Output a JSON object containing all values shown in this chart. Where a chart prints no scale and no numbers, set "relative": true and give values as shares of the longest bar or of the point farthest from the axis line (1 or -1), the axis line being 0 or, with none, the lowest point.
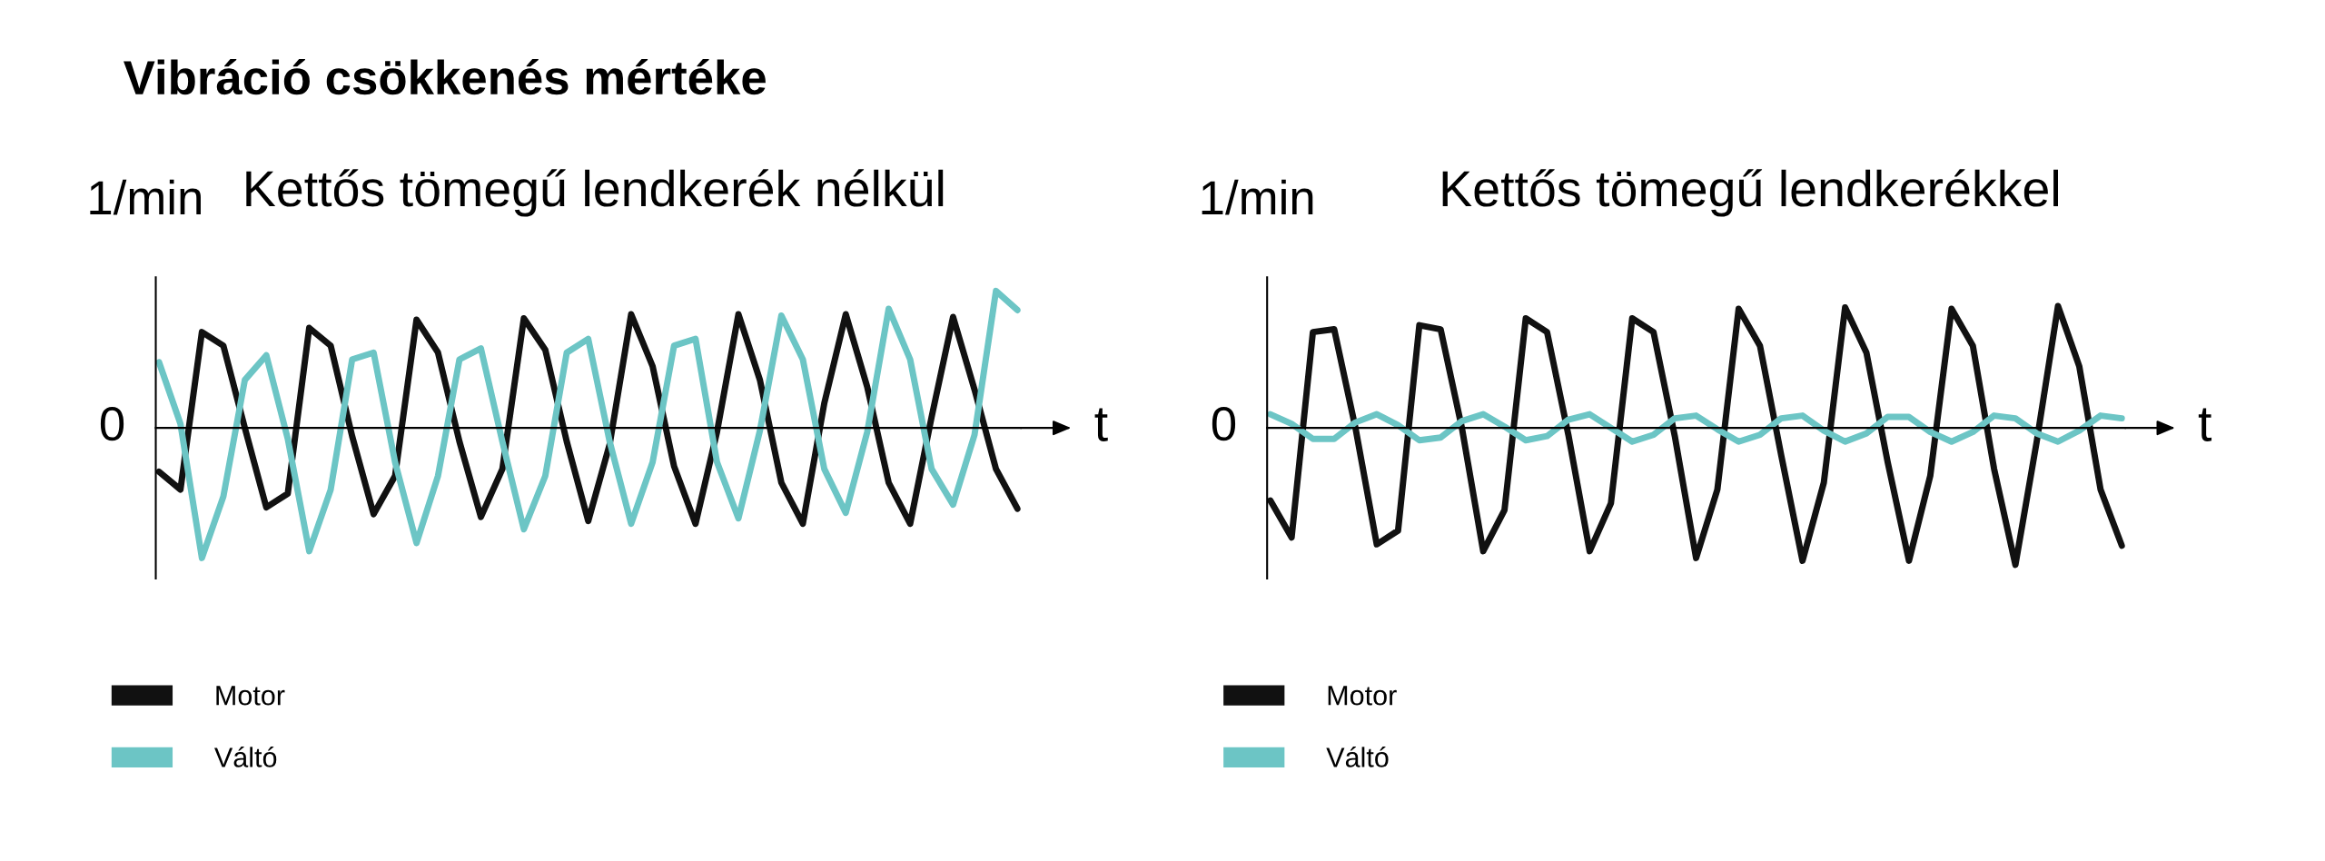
{
  "chart_data": [
    {
      "type": "line",
      "title": "Vibráció csökkenés mértéke",
      "subtitle": "Kettős tömegű lendkerék nélkül",
      "xlabel": "t",
      "ylabel": "1/min",
      "annotations": [
        "0"
      ],
      "relative": true,
      "legend": "bottom left",
      "categories": [
        null,
        null,
        null,
        null,
        null,
        null,
        null,
        null,
        null,
        null,
        null,
        null,
        null,
        null,
        null,
        null,
        null,
        null,
        null,
        null,
        null,
        null,
        null,
        null,
        null,
        null,
        null,
        null,
        null,
        null,
        null,
        null,
        null,
        null,
        null,
        null,
        null,
        null,
        null,
        null,
        null
      ],
      "series": [
        {
          "name": "Motor",
          "color": "#111111",
          "values": [
            -0.32,
            -0.45,
            0.7,
            0.6,
            0,
            -0.58,
            -0.48,
            0.73,
            0.6,
            -0.06,
            -0.63,
            -0.35,
            0.79,
            0.55,
            -0.1,
            -0.65,
            -0.3,
            0.8,
            0.57,
            -0.1,
            -0.68,
            -0.12,
            0.83,
            0.45,
            -0.28,
            -0.7,
            -0.03,
            0.83,
            0.35,
            -0.4,
            -0.7,
            0.18,
            0.83,
            0.3,
            -0.4,
            -0.7,
            0.08,
            0.81,
            0.28,
            -0.3,
            -0.59
          ]
        },
        {
          "name": "Váltó",
          "color": "#6cc5c5",
          "values": [
            0.48,
            0.03,
            -0.95,
            -0.5,
            0.35,
            0.53,
            -0.08,
            -0.9,
            -0.45,
            0.5,
            0.55,
            -0.25,
            -0.84,
            -0.35,
            0.5,
            0.58,
            -0.1,
            -0.74,
            -0.35,
            0.55,
            0.65,
            -0.1,
            -0.7,
            -0.25,
            0.6,
            0.65,
            -0.25,
            -0.66,
            -0.02,
            0.82,
            0.5,
            -0.3,
            -0.62,
            -0.03,
            0.87,
            0.5,
            -0.3,
            -0.56,
            -0.05,
            1,
            0.86
          ]
        }
      ]
    },
    {
      "type": "line",
      "subtitle": "Kettős tömegű lendkerékkel",
      "xlabel": "t",
      "ylabel": "1/min",
      "annotations": [
        "0"
      ],
      "relative": true,
      "legend": "bottom left",
      "categories": [
        null,
        null,
        null,
        null,
        null,
        null,
        null,
        null,
        null,
        null,
        null,
        null,
        null,
        null,
        null,
        null,
        null,
        null,
        null,
        null,
        null,
        null,
        null,
        null,
        null,
        null,
        null,
        null,
        null,
        null,
        null,
        null,
        null,
        null,
        null,
        null,
        null,
        null,
        null,
        null,
        null
      ],
      "series": [
        {
          "name": "Motor",
          "color": "#111111",
          "values": [
            -0.53,
            -0.8,
            0.7,
            0.72,
            0,
            -0.85,
            -0.75,
            0.75,
            0.72,
            0,
            -0.9,
            -0.6,
            0.8,
            0.7,
            -0.05,
            -0.9,
            -0.55,
            0.8,
            0.7,
            -0.06,
            -0.95,
            -0.45,
            0.87,
            0.6,
            -0.2,
            -0.97,
            -0.4,
            0.88,
            0.55,
            -0.25,
            -0.97,
            -0.35,
            0.87,
            0.6,
            -0.3,
            -1,
            -0.1,
            0.89,
            0.45,
            -0.45,
            -0.86
          ]
        },
        {
          "name": "Váltó",
          "color": "#6cc5c5",
          "values": [
            0.1,
            0.03,
            -0.08,
            -0.08,
            0.04,
            0.1,
            0.02,
            -0.09,
            -0.07,
            0.05,
            0.1,
            0.01,
            -0.09,
            -0.06,
            0.06,
            0.1,
            0,
            -0.1,
            -0.05,
            0.07,
            0.09,
            -0.01,
            -0.1,
            -0.05,
            0.07,
            0.09,
            -0.02,
            -0.1,
            -0.04,
            0.08,
            0.08,
            -0.03,
            -0.1,
            -0.03,
            0.09,
            0.07,
            -0.04,
            -0.1,
            -0.02,
            0.09,
            0.07
          ]
        }
      ]
    }
  ]
}
